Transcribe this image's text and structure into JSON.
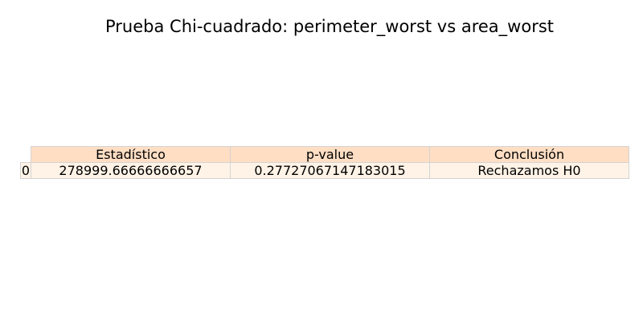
{
  "chart_data": {
    "type": "table",
    "title": "Prueba Chi-cuadrado: perimeter_worst vs area_worst",
    "columns": [
      "Estadístico",
      "p-value",
      "Conclusión"
    ],
    "rows": [
      {
        "index": "0",
        "cells": [
          "278999.66666666657",
          "0.27727067147183015",
          "Rechazamos H0"
        ]
      }
    ],
    "colors": {
      "header_bg": "#ffdec4",
      "row_bg": "#fff3e7",
      "border": "#d3d3d3"
    }
  }
}
